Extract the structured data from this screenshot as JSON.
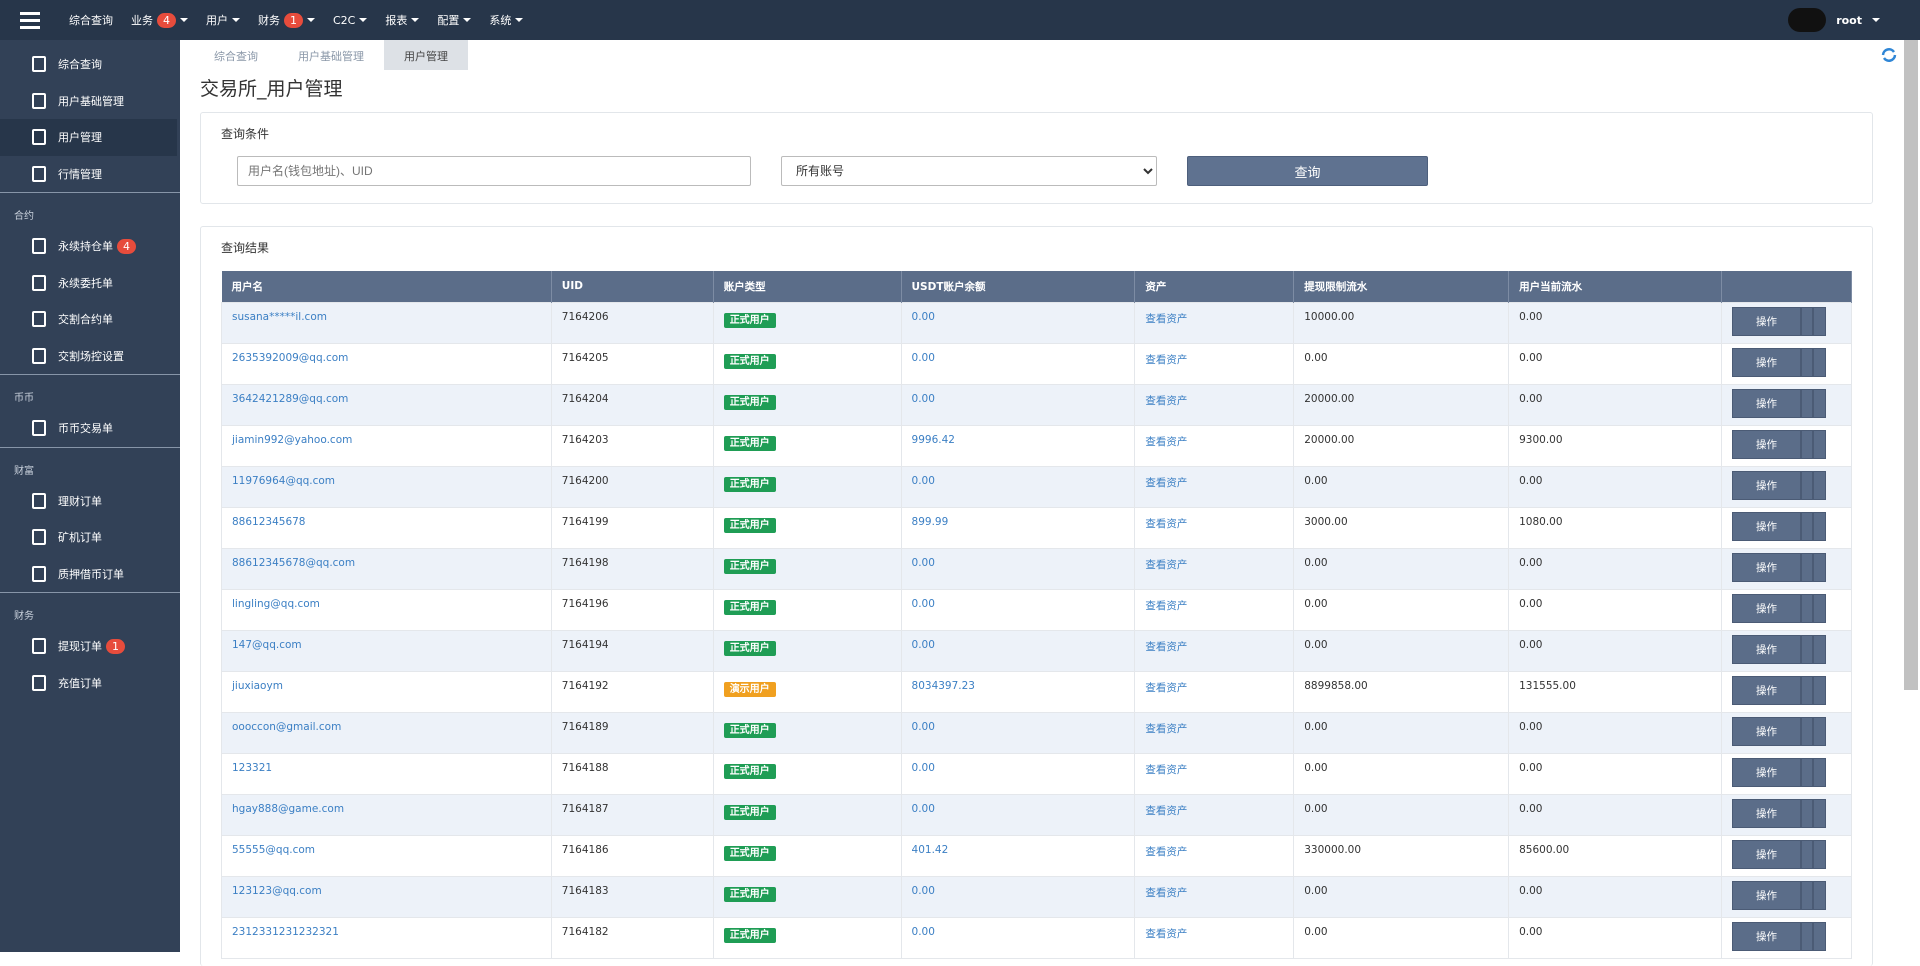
{
  "topbar": {
    "nav": [
      {
        "label": "综合查询"
      },
      {
        "label": "业务",
        "badge": "4"
      },
      {
        "label": "用户"
      },
      {
        "label": "财务",
        "badge": "1"
      },
      {
        "label": "C2C"
      },
      {
        "label": "报表"
      },
      {
        "label": "配置"
      },
      {
        "label": "系统"
      }
    ],
    "user": "root"
  },
  "sidebar": {
    "groups": [
      {
        "items": [
          {
            "label": "综合查询"
          },
          {
            "label": "用户基础管理"
          },
          {
            "label": "用户管理"
          },
          {
            "label": "行情管理"
          }
        ]
      },
      {
        "title": "合约",
        "items": [
          {
            "label": "永续持仓单",
            "badge": "4"
          },
          {
            "label": "永续委托单"
          },
          {
            "label": "交割合约单"
          },
          {
            "label": "交割场控设置"
          }
        ]
      },
      {
        "title": "币币",
        "items": [
          {
            "label": "币币交易单"
          }
        ]
      },
      {
        "title": "财富",
        "items": [
          {
            "label": "理财订单"
          },
          {
            "label": "矿机订单"
          },
          {
            "label": "质押借币订单"
          }
        ]
      },
      {
        "title": "财务",
        "items": [
          {
            "label": "提现订单",
            "badge": "1"
          },
          {
            "label": "充值订单"
          }
        ]
      }
    ]
  },
  "tabs": [
    "综合查询",
    "用户基础管理",
    "用户管理"
  ],
  "page_title": "交易所_用户管理",
  "search": {
    "title": "查询条件",
    "placeholder": "用户名(钱包地址)、UID",
    "select": "所有账号",
    "button": "查询"
  },
  "results": {
    "title": "查询结果",
    "columns": [
      "用户名",
      "UID",
      "账户类型",
      "USDT账户余额",
      "资产",
      "提现限制流水",
      "用户当前流水"
    ],
    "asset_link": "查看资产",
    "action": "操作",
    "type_colors": {
      "正式用户": "#1f9d55",
      "演示用户": "#f0a020"
    },
    "rows": [
      [
        "susana*****il.com",
        "7164206",
        "正式用户",
        "0.00",
        "10000.00",
        "0.00"
      ],
      [
        "2635392009@qq.com",
        "7164205",
        "正式用户",
        "0.00",
        "0.00",
        "0.00"
      ],
      [
        "3642421289@qq.com",
        "7164204",
        "正式用户",
        "0.00",
        "20000.00",
        "0.00"
      ],
      [
        "jiamin992@yahoo.com",
        "7164203",
        "正式用户",
        "9996.42",
        "20000.00",
        "9300.00"
      ],
      [
        "11976964@qq.com",
        "7164200",
        "正式用户",
        "0.00",
        "0.00",
        "0.00"
      ],
      [
        "88612345678",
        "7164199",
        "正式用户",
        "899.99",
        "3000.00",
        "1080.00"
      ],
      [
        "88612345678@qq.com",
        "7164198",
        "正式用户",
        "0.00",
        "0.00",
        "0.00"
      ],
      [
        "lingling@qq.com",
        "7164196",
        "正式用户",
        "0.00",
        "0.00",
        "0.00"
      ],
      [
        "147@qq.com",
        "7164194",
        "正式用户",
        "0.00",
        "0.00",
        "0.00"
      ],
      [
        "jiuxiaoym",
        "7164192",
        "演示用户",
        "8034397.23",
        "8899858.00",
        "131555.00"
      ],
      [
        "oooccon@gmail.com",
        "7164189",
        "正式用户",
        "0.00",
        "0.00",
        "0.00"
      ],
      [
        "123321",
        "7164188",
        "正式用户",
        "0.00",
        "0.00",
        "0.00"
      ],
      [
        "hgay888@game.com",
        "7164187",
        "正式用户",
        "0.00",
        "0.00",
        "0.00"
      ],
      [
        "55555@qq.com",
        "7164186",
        "正式用户",
        "401.42",
        "330000.00",
        "85600.00"
      ],
      [
        "123123@qq.com",
        "7164183",
        "正式用户",
        "0.00",
        "0.00",
        "0.00"
      ],
      [
        "2312331231232321",
        "7164182",
        "正式用户",
        "0.00",
        "0.00",
        "0.00"
      ]
    ]
  }
}
